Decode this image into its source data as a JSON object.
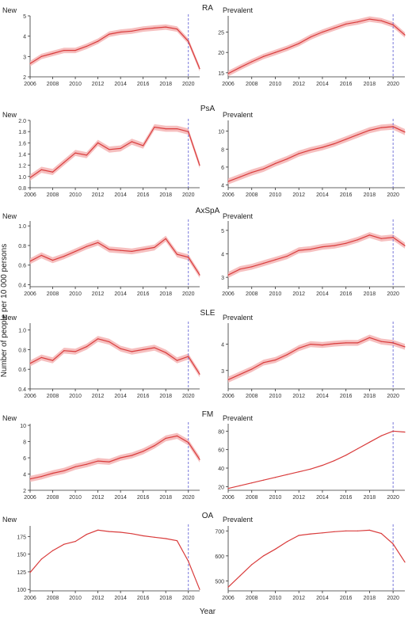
{
  "figure": {
    "ylabel": "Number of people per 10 000 persons",
    "xlabel": "Year",
    "colors": {
      "line": "#d93c3c",
      "band": "#f4b4b4",
      "vline": "#6b6bd6",
      "axis": "#333333"
    }
  },
  "chart_data": [
    {
      "type": "line",
      "group": "RA",
      "subtitle": "New",
      "ci_band": true,
      "x": [
        2006,
        2007,
        2008,
        2009,
        2010,
        2011,
        2012,
        2013,
        2014,
        2015,
        2016,
        2017,
        2018,
        2019,
        2020,
        2021
      ],
      "series": [
        {
          "values": [
            2.65,
            3.0,
            3.15,
            3.3,
            3.3,
            3.5,
            3.75,
            4.1,
            4.2,
            4.25,
            4.35,
            4.4,
            4.45,
            4.35,
            3.75,
            2.4
          ]
        }
      ],
      "xlim": [
        2006,
        2021
      ],
      "ylim": [
        2,
        5
      ],
      "yticks": [
        2,
        3,
        4,
        5
      ],
      "vline": 2020
    },
    {
      "type": "line",
      "group": "RA",
      "subtitle": "Prevalent",
      "ci_band": true,
      "x": [
        2006,
        2007,
        2008,
        2009,
        2010,
        2011,
        2012,
        2013,
        2014,
        2015,
        2016,
        2017,
        2018,
        2019,
        2020,
        2021
      ],
      "series": [
        {
          "values": [
            14.8,
            16.3,
            17.7,
            19.0,
            20.0,
            21.0,
            22.2,
            23.8,
            25.0,
            26.0,
            27.0,
            27.5,
            28.2,
            27.8,
            26.8,
            24.3
          ]
        }
      ],
      "xlim": [
        2006,
        2021
      ],
      "ylim": [
        14,
        29
      ],
      "yticks": [
        15,
        20,
        25
      ],
      "vline": 2020
    },
    {
      "type": "line",
      "group": "PsA",
      "subtitle": "New",
      "ci_band": true,
      "x": [
        2006,
        2007,
        2008,
        2009,
        2010,
        2011,
        2012,
        2013,
        2014,
        2015,
        2016,
        2017,
        2018,
        2019,
        2020,
        2021
      ],
      "series": [
        {
          "values": [
            0.98,
            1.12,
            1.08,
            1.25,
            1.42,
            1.38,
            1.6,
            1.48,
            1.5,
            1.62,
            1.55,
            1.88,
            1.85,
            1.85,
            1.8,
            1.2
          ]
        }
      ],
      "xlim": [
        2006,
        2021
      ],
      "ylim": [
        0.8,
        2.0
      ],
      "yticks": [
        0.8,
        1.0,
        1.2,
        1.4,
        1.6,
        1.8,
        2.0
      ],
      "vline": 2020
    },
    {
      "type": "line",
      "group": "PsA",
      "subtitle": "Prevalent",
      "ci_band": true,
      "x": [
        2006,
        2007,
        2008,
        2009,
        2010,
        2011,
        2012,
        2013,
        2014,
        2015,
        2016,
        2017,
        2018,
        2019,
        2020,
        2021
      ],
      "series": [
        {
          "values": [
            4.4,
            4.9,
            5.4,
            5.8,
            6.4,
            6.9,
            7.5,
            7.9,
            8.2,
            8.6,
            9.1,
            9.6,
            10.1,
            10.4,
            10.5,
            9.9
          ]
        }
      ],
      "xlim": [
        2006,
        2021
      ],
      "ylim": [
        3.7,
        11.2
      ],
      "yticks": [
        4,
        6,
        8,
        10
      ],
      "vline": 2020
    },
    {
      "type": "line",
      "group": "AxSpA",
      "subtitle": "New",
      "ci_band": true,
      "x": [
        2006,
        2007,
        2008,
        2009,
        2010,
        2011,
        2012,
        2013,
        2014,
        2015,
        2016,
        2017,
        2018,
        2019,
        2020,
        2021
      ],
      "series": [
        {
          "values": [
            0.64,
            0.7,
            0.65,
            0.69,
            0.74,
            0.79,
            0.83,
            0.76,
            0.75,
            0.74,
            0.76,
            0.78,
            0.87,
            0.71,
            0.68,
            0.5
          ]
        }
      ],
      "xlim": [
        2006,
        2021
      ],
      "ylim": [
        0.38,
        1.05
      ],
      "yticks": [
        0.4,
        0.6,
        0.8,
        1.0
      ],
      "vline": 2020
    },
    {
      "type": "line",
      "group": "AxSpA",
      "subtitle": "Prevalent",
      "ci_band": true,
      "x": [
        2006,
        2007,
        2008,
        2009,
        2010,
        2011,
        2012,
        2013,
        2014,
        2015,
        2016,
        2017,
        2018,
        2019,
        2020,
        2021
      ],
      "series": [
        {
          "values": [
            3.1,
            3.35,
            3.45,
            3.6,
            3.75,
            3.9,
            4.15,
            4.2,
            4.3,
            4.35,
            4.45,
            4.6,
            4.8,
            4.65,
            4.7,
            4.35
          ]
        }
      ],
      "xlim": [
        2006,
        2021
      ],
      "ylim": [
        2.6,
        5.4
      ],
      "yticks": [
        3,
        4,
        5
      ],
      "vline": 2020
    },
    {
      "type": "line",
      "group": "SLE",
      "subtitle": "New",
      "ci_band": true,
      "x": [
        2006,
        2007,
        2008,
        2009,
        2010,
        2011,
        2012,
        2013,
        2014,
        2015,
        2016,
        2017,
        2018,
        2019,
        2020,
        2021
      ],
      "series": [
        {
          "values": [
            0.66,
            0.72,
            0.69,
            0.79,
            0.78,
            0.83,
            0.91,
            0.88,
            0.81,
            0.78,
            0.8,
            0.82,
            0.77,
            0.69,
            0.73,
            0.55
          ]
        }
      ],
      "xlim": [
        2006,
        2021
      ],
      "ylim": [
        0.4,
        1.07
      ],
      "yticks": [
        0.4,
        0.6,
        0.8,
        1.0
      ],
      "vline": 2020
    },
    {
      "type": "line",
      "group": "SLE",
      "subtitle": "Prevalent",
      "ci_band": true,
      "x": [
        2006,
        2007,
        2008,
        2009,
        2010,
        2011,
        2012,
        2013,
        2014,
        2015,
        2016,
        2017,
        2018,
        2019,
        2020,
        2021
      ],
      "series": [
        {
          "values": [
            2.65,
            2.85,
            3.05,
            3.3,
            3.4,
            3.6,
            3.85,
            4.0,
            3.97,
            4.02,
            4.05,
            4.05,
            4.25,
            4.1,
            4.05,
            3.9
          ]
        }
      ],
      "xlim": [
        2006,
        2021
      ],
      "ylim": [
        2.3,
        4.8
      ],
      "yticks": [
        3,
        4
      ],
      "vline": 2020
    },
    {
      "type": "line",
      "group": "FM",
      "subtitle": "New",
      "ci_band": true,
      "x": [
        2006,
        2007,
        2008,
        2009,
        2010,
        2011,
        2012,
        2013,
        2014,
        2015,
        2016,
        2017,
        2018,
        2019,
        2020,
        2021
      ],
      "series": [
        {
          "values": [
            3.4,
            3.7,
            4.1,
            4.4,
            4.9,
            5.2,
            5.6,
            5.5,
            6.0,
            6.3,
            6.8,
            7.5,
            8.4,
            8.7,
            7.9,
            5.8
          ]
        }
      ],
      "xlim": [
        2006,
        2021
      ],
      "ylim": [
        2,
        10.2
      ],
      "yticks": [
        2,
        4,
        6,
        8,
        10
      ],
      "vline": 2020
    },
    {
      "type": "line",
      "group": "FM",
      "subtitle": "Prevalent",
      "ci_band": false,
      "x": [
        2006,
        2007,
        2008,
        2009,
        2010,
        2011,
        2012,
        2013,
        2014,
        2015,
        2016,
        2017,
        2018,
        2019,
        2020,
        2021
      ],
      "series": [
        {
          "values": [
            18,
            21,
            24,
            27,
            30,
            33,
            36,
            39,
            43,
            48,
            54,
            61,
            68,
            75,
            80,
            79
          ]
        }
      ],
      "xlim": [
        2006,
        2021
      ],
      "ylim": [
        16,
        88
      ],
      "yticks": [
        20,
        40,
        60,
        80
      ],
      "vline": 2020
    },
    {
      "type": "line",
      "group": "OA",
      "subtitle": "New",
      "ci_band": false,
      "x": [
        2006,
        2007,
        2008,
        2009,
        2010,
        2011,
        2012,
        2013,
        2014,
        2015,
        2016,
        2017,
        2018,
        2019,
        2020,
        2021
      ],
      "series": [
        {
          "values": [
            124,
            143,
            155,
            164,
            168,
            178,
            184,
            182,
            181,
            179,
            176,
            174,
            172,
            169,
            140,
            100
          ]
        }
      ],
      "xlim": [
        2006,
        2021
      ],
      "ylim": [
        98,
        190
      ],
      "yticks": [
        100,
        125,
        150,
        175
      ],
      "vline": 2020
    },
    {
      "type": "line",
      "group": "OA",
      "subtitle": "Prevalent",
      "ci_band": false,
      "x": [
        2006,
        2007,
        2008,
        2009,
        2010,
        2011,
        2012,
        2013,
        2014,
        2015,
        2016,
        2017,
        2018,
        2019,
        2020,
        2021
      ],
      "series": [
        {
          "values": [
            475,
            520,
            565,
            600,
            627,
            657,
            682,
            688,
            692,
            697,
            700,
            700,
            703,
            690,
            648,
            575
          ]
        }
      ],
      "xlim": [
        2006,
        2021
      ],
      "ylim": [
        460,
        720
      ],
      "yticks": [
        500,
        600,
        700
      ],
      "vline": 2020
    }
  ]
}
